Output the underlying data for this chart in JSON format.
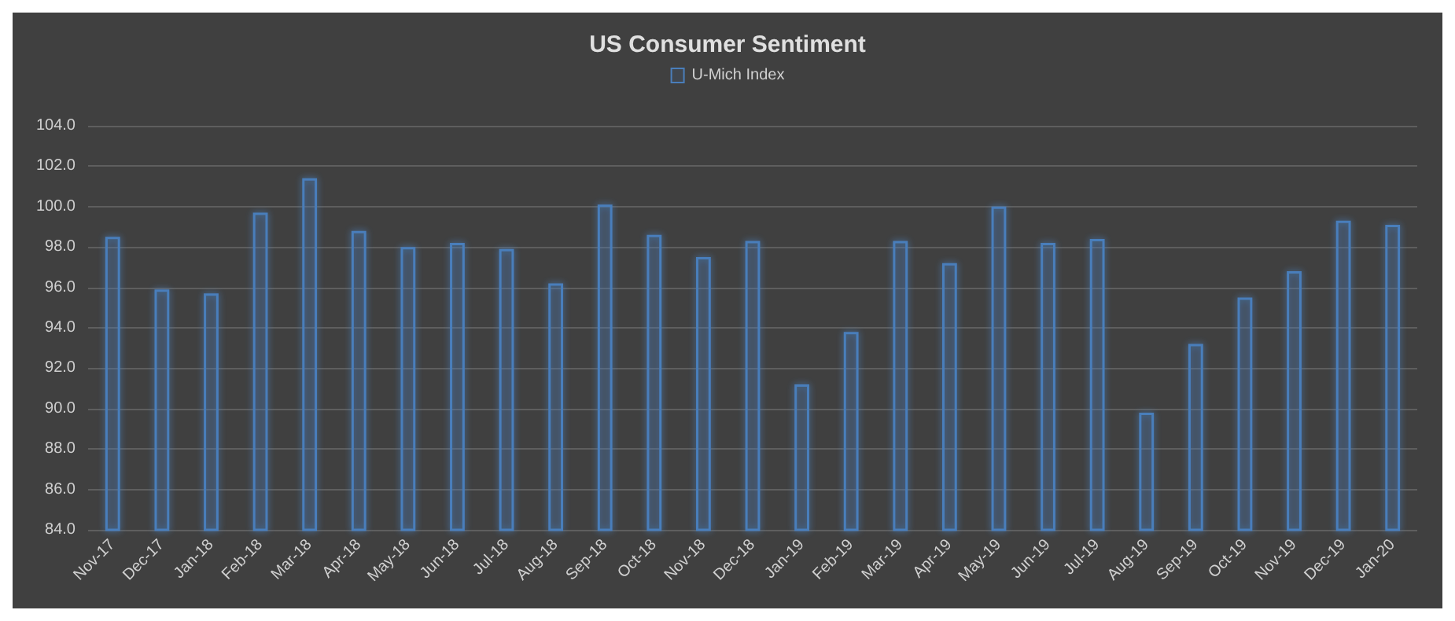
{
  "chart_data": {
    "type": "bar",
    "title": "US Consumer Sentiment",
    "categories": [
      "Nov-17",
      "Dec-17",
      "Jan-18",
      "Feb-18",
      "Mar-18",
      "Apr-18",
      "May-18",
      "Jun-18",
      "Jul-18",
      "Aug-18",
      "Sep-18",
      "Oct-18",
      "Nov-18",
      "Dec-18",
      "Jan-19",
      "Feb-19",
      "Mar-19",
      "Apr-19",
      "May-19",
      "Jun-19",
      "Jul-19",
      "Aug-19",
      "Sep-19",
      "Oct-19",
      "Nov-19",
      "Dec-19",
      "Jan-20"
    ],
    "series": [
      {
        "name": "U-Mich Index",
        "color": "#4a7ebb",
        "values": [
          98.5,
          95.9,
          95.7,
          99.7,
          101.4,
          98.8,
          98.0,
          98.2,
          97.9,
          96.2,
          100.1,
          98.6,
          97.5,
          98.3,
          91.2,
          93.8,
          98.3,
          97.2,
          100.0,
          98.2,
          98.4,
          89.8,
          93.2,
          95.5,
          96.8,
          99.3,
          99.1
        ]
      }
    ],
    "ylim": [
      84,
      104
    ],
    "yticks": [
      {
        "value": 84,
        "label": "84.0"
      },
      {
        "value": 86,
        "label": "86.0"
      },
      {
        "value": 88,
        "label": "88.0"
      },
      {
        "value": 90,
        "label": "90.0"
      },
      {
        "value": 92,
        "label": "92.0"
      },
      {
        "value": 94,
        "label": "94.0"
      },
      {
        "value": 96,
        "label": "96.0"
      },
      {
        "value": 98,
        "label": "98.0"
      },
      {
        "value": 100,
        "label": "100.0"
      },
      {
        "value": 102,
        "label": "102.0"
      },
      {
        "value": 104,
        "label": "104.0"
      }
    ],
    "grid": "y",
    "legend": "top"
  }
}
